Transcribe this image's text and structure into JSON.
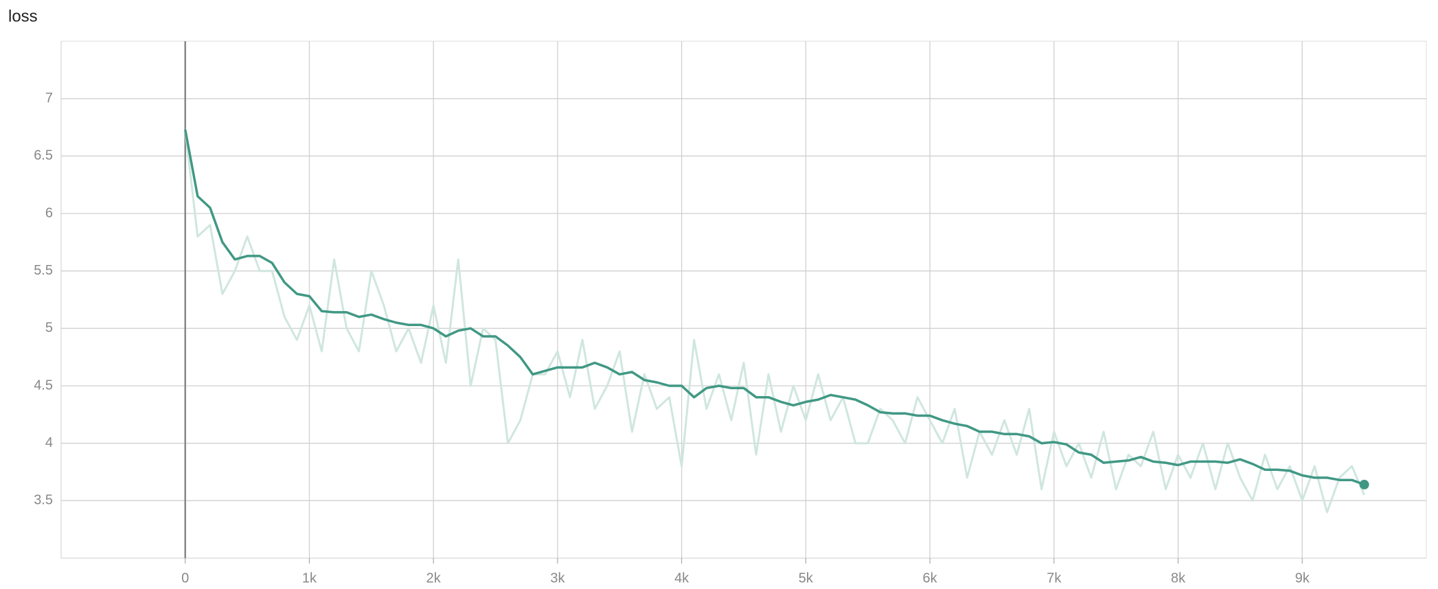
{
  "chart_data": {
    "type": "line",
    "title": "loss",
    "x": [
      0,
      100,
      200,
      300,
      400,
      500,
      600,
      700,
      800,
      900,
      1000,
      1100,
      1200,
      1300,
      1400,
      1500,
      1600,
      1700,
      1800,
      1900,
      2000,
      2100,
      2200,
      2300,
      2400,
      2500,
      2600,
      2700,
      2800,
      2900,
      3000,
      3100,
      3200,
      3300,
      3400,
      3500,
      3600,
      3700,
      3800,
      3900,
      4000,
      4100,
      4200,
      4300,
      4400,
      4500,
      4600,
      4700,
      4800,
      4900,
      5000,
      5100,
      5200,
      5300,
      5400,
      5500,
      5600,
      5700,
      5800,
      5900,
      6000,
      6100,
      6200,
      6300,
      6400,
      6500,
      6600,
      6700,
      6800,
      6900,
      7000,
      7100,
      7200,
      7300,
      7400,
      7500,
      7600,
      7700,
      7800,
      7900,
      8000,
      8100,
      8200,
      8300,
      8400,
      8500,
      8600,
      8700,
      8800,
      8900,
      9000,
      9100,
      9200,
      9300,
      9400,
      9500
    ],
    "series": [
      {
        "color": "#cfe6df",
        "values": [
          6.73,
          5.8,
          5.9,
          5.3,
          5.5,
          5.8,
          5.5,
          5.5,
          5.1,
          4.9,
          5.2,
          4.8,
          5.6,
          5.0,
          4.8,
          5.5,
          5.2,
          4.8,
          5.0,
          4.7,
          5.2,
          4.7,
          5.6,
          4.5,
          5.0,
          4.9,
          4.0,
          4.2,
          4.6,
          4.6,
          4.8,
          4.4,
          4.9,
          4.3,
          4.5,
          4.8,
          4.1,
          4.6,
          4.3,
          4.4,
          3.8,
          4.9,
          4.3,
          4.6,
          4.2,
          4.7,
          3.9,
          4.6,
          4.1,
          4.5,
          4.2,
          4.6,
          4.2,
          4.4,
          4.0,
          4.0,
          4.3,
          4.2,
          4.0,
          4.4,
          4.2,
          4.0,
          4.3,
          3.7,
          4.1,
          3.9,
          4.2,
          3.9,
          4.3,
          3.6,
          4.1,
          3.8,
          4.0,
          3.7,
          4.1,
          3.6,
          3.9,
          3.8,
          4.1,
          3.6,
          3.9,
          3.7,
          4.0,
          3.6,
          4.0,
          3.7,
          3.5,
          3.9,
          3.6,
          3.8,
          3.5,
          3.8,
          3.4,
          3.7,
          3.8,
          3.55
        ]
      },
      {
        "color": "#409884",
        "values": [
          6.73,
          6.15,
          6.05,
          5.75,
          5.6,
          5.63,
          5.63,
          5.57,
          5.4,
          5.3,
          5.28,
          5.15,
          5.14,
          5.14,
          5.1,
          5.12,
          5.08,
          5.05,
          5.03,
          5.03,
          5.0,
          4.93,
          4.98,
          5.0,
          4.93,
          4.93,
          4.85,
          4.75,
          4.6,
          4.63,
          4.66,
          4.66,
          4.66,
          4.7,
          4.66,
          4.6,
          4.62,
          4.55,
          4.53,
          4.5,
          4.5,
          4.4,
          4.48,
          4.5,
          4.48,
          4.48,
          4.4,
          4.4,
          4.36,
          4.33,
          4.36,
          4.38,
          4.42,
          4.4,
          4.38,
          4.33,
          4.27,
          4.26,
          4.26,
          4.24,
          4.24,
          4.2,
          4.17,
          4.15,
          4.1,
          4.1,
          4.08,
          4.08,
          4.06,
          4.0,
          4.01,
          3.99,
          3.92,
          3.9,
          3.83,
          3.84,
          3.85,
          3.88,
          3.84,
          3.83,
          3.81,
          3.84,
          3.84,
          3.84,
          3.83,
          3.86,
          3.82,
          3.77,
          3.77,
          3.76,
          3.72,
          3.7,
          3.7,
          3.68,
          3.68,
          3.64
        ]
      }
    ],
    "xlim": [
      -1000,
      10000
    ],
    "xticks": [
      0,
      {
        "value": 1000,
        "label": "1k"
      },
      {
        "value": 2000,
        "label": "2k"
      },
      {
        "value": 3000,
        "label": "3k"
      },
      {
        "value": 4000,
        "label": "4k"
      },
      {
        "value": 5000,
        "label": "5k"
      },
      {
        "value": 6000,
        "label": "6k"
      },
      {
        "value": 7000,
        "label": "7k"
      },
      {
        "value": 8000,
        "label": "8k"
      },
      {
        "value": 9000,
        "label": "9k"
      }
    ],
    "ylim": [
      3,
      7.5
    ],
    "yticks": [
      3.5,
      4,
      4.5,
      5,
      5.5,
      6,
      6.5,
      7
    ],
    "grid": true
  }
}
